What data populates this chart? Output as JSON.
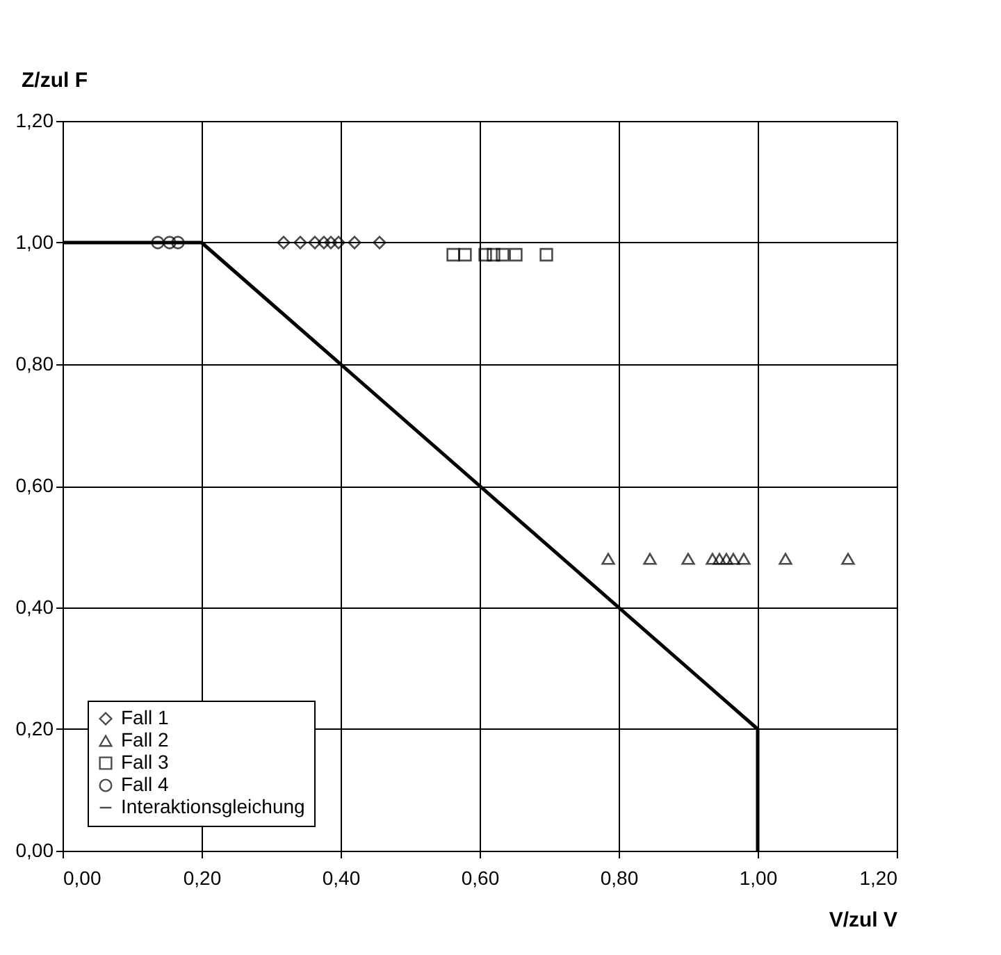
{
  "chart_data": {
    "type": "scatter",
    "xlabel": "V/zul V",
    "ylabel": "Z/zul F",
    "xlim": [
      0,
      1.2
    ],
    "ylim": [
      0,
      1.2
    ],
    "xticks": [
      {
        "value": 0,
        "label": "0,00"
      },
      {
        "value": 0.2,
        "label": "0,20"
      },
      {
        "value": 0.4,
        "label": "0,40"
      },
      {
        "value": 0.6,
        "label": "0,60"
      },
      {
        "value": 0.8,
        "label": "0,80"
      },
      {
        "value": 1.0,
        "label": "1,00"
      },
      {
        "value": 1.2,
        "label": "1,20"
      }
    ],
    "yticks": [
      {
        "value": 0,
        "label": "0,00"
      },
      {
        "value": 0.2,
        "label": "0,20"
      },
      {
        "value": 0.4,
        "label": "0,40"
      },
      {
        "value": 0.6,
        "label": "0,60"
      },
      {
        "value": 0.8,
        "label": "0,80"
      },
      {
        "value": 1.0,
        "label": "1,00"
      },
      {
        "value": 1.2,
        "label": "1,20"
      }
    ],
    "grid": true,
    "legend": "bottom left",
    "series": [
      {
        "name": "Fall 1",
        "color": "#000000",
        "marker": "diamond",
        "x": [
          0.318,
          0.342,
          0.363,
          0.376,
          0.386,
          0.397,
          0.42,
          0.456
        ],
        "values": [
          1.0,
          1.0,
          1.0,
          1.0,
          1.0,
          1.0,
          1.0,
          1.0
        ]
      },
      {
        "name": "Fall 2",
        "color": "#000000",
        "marker": "triangle",
        "x": [
          0.785,
          0.845,
          0.9,
          0.935,
          0.945,
          0.955,
          0.965,
          0.98,
          1.04,
          1.13
        ],
        "values": [
          0.48,
          0.48,
          0.48,
          0.48,
          0.48,
          0.48,
          0.48,
          0.48,
          0.48,
          0.48
        ]
      },
      {
        "name": "Fall 3",
        "color": "#000000",
        "marker": "square",
        "x": [
          0.562,
          0.579,
          0.608,
          0.62,
          0.633,
          0.652,
          0.696
        ],
        "values": [
          0.98,
          0.98,
          0.98,
          0.98,
          0.98,
          0.98,
          0.98
        ]
      },
      {
        "name": "Fall 4",
        "color": "#000000",
        "marker": "circle",
        "x": [
          0.137,
          0.154,
          0.166
        ],
        "values": [
          1.0,
          1.0,
          1.0
        ]
      },
      {
        "name": "Interaktionsgleichung",
        "color": "#000000",
        "type": "line",
        "marker": "none",
        "line_style": "solid",
        "x": [
          0,
          0.2,
          1.0,
          1.0
        ],
        "values": [
          1.0,
          1.0,
          0.2,
          0
        ]
      }
    ]
  }
}
